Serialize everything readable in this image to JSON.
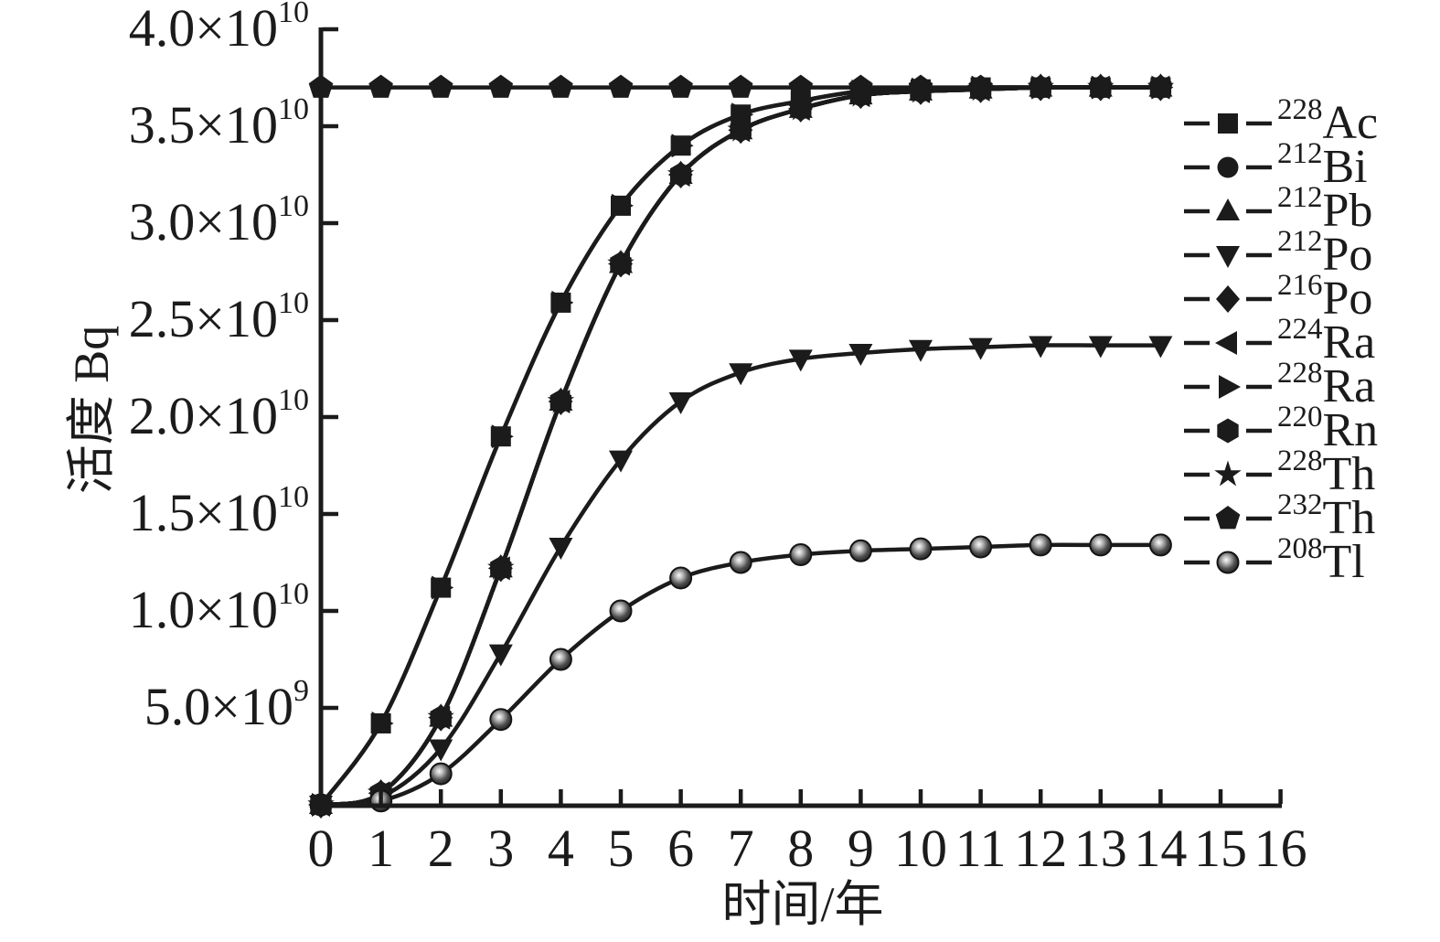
{
  "colors": {
    "foreground": "#1b1b1b",
    "background": "#ffffff"
  },
  "chart_data": {
    "type": "line",
    "title": "",
    "xlabel": "时间/年",
    "ylabel": "活度 Bq",
    "xlim": [
      0,
      16
    ],
    "ylim": [
      0,
      40000000000.0
    ],
    "grid": false,
    "legend_position": "right",
    "x_ticks": [
      0,
      1,
      2,
      3,
      4,
      5,
      6,
      7,
      8,
      9,
      10,
      11,
      12,
      13,
      14,
      15,
      16
    ],
    "y_ticks": [
      {
        "value": 5000000000.0,
        "mantissa": "5.0×10",
        "exponent": "9"
      },
      {
        "value": 10000000000.0,
        "mantissa": "1.0×10",
        "exponent": "10"
      },
      {
        "value": 15000000000.0,
        "mantissa": "1.5×10",
        "exponent": "10"
      },
      {
        "value": 20000000000.0,
        "mantissa": "2.0×10",
        "exponent": "10"
      },
      {
        "value": 25000000000.0,
        "mantissa": "2.5×10",
        "exponent": "10"
      },
      {
        "value": 30000000000.0,
        "mantissa": "3.0×10",
        "exponent": "10"
      },
      {
        "value": 35000000000.0,
        "mantissa": "3.5×10",
        "exponent": "10"
      },
      {
        "value": 40000000000.0,
        "mantissa": "4.0×10",
        "exponent": "10"
      }
    ],
    "x": [
      0,
      1,
      2,
      3,
      4,
      5,
      6,
      7,
      8,
      9,
      10,
      11,
      12,
      13,
      14
    ],
    "series": [
      {
        "name": "228Ac",
        "mass": "228",
        "symbol": "Ac",
        "marker": "square",
        "values": [
          0,
          4200000000.0,
          11200000000.0,
          19000000000.0,
          25900000000.0,
          30900000000.0,
          34000000000.0,
          35600000000.0,
          36300000000.0,
          36800000000.0,
          36900000000.0,
          37000000000.0,
          37000000000.0,
          37000000000.0,
          37000000000.0
        ]
      },
      {
        "name": "212Bi",
        "mass": "212",
        "symbol": "Bi",
        "marker": "circle",
        "values": [
          0,
          600000000.0,
          4500000000.0,
          12200000000.0,
          20800000000.0,
          27900000000.0,
          32500000000.0,
          34800000000.0,
          35900000000.0,
          36600000000.0,
          36800000000.0,
          36900000000.0,
          37000000000.0,
          37000000000.0,
          37000000000.0
        ]
      },
      {
        "name": "212Pb",
        "mass": "212",
        "symbol": "Pb",
        "marker": "triangle-up",
        "values": [
          0,
          600000000.0,
          4500000000.0,
          12200000000.0,
          20800000000.0,
          27900000000.0,
          32500000000.0,
          34800000000.0,
          35900000000.0,
          36600000000.0,
          36800000000.0,
          36900000000.0,
          37000000000.0,
          37000000000.0,
          37000000000.0
        ]
      },
      {
        "name": "212Po",
        "mass": "212",
        "symbol": "Po",
        "marker": "triangle-down",
        "values": [
          0,
          400000000.0,
          2900000000.0,
          7800000000.0,
          13300000000.0,
          17800000000.0,
          20800000000.0,
          22300000000.0,
          23000000000.0,
          23300000000.0,
          23500000000.0,
          23600000000.0,
          23700000000.0,
          23700000000.0,
          23700000000.0
        ]
      },
      {
        "name": "216Po",
        "mass": "216",
        "symbol": "Po",
        "marker": "diamond",
        "values": [
          0,
          600000000.0,
          4500000000.0,
          12200000000.0,
          20800000000.0,
          27900000000.0,
          32500000000.0,
          34800000000.0,
          35900000000.0,
          36600000000.0,
          36800000000.0,
          36900000000.0,
          37000000000.0,
          37000000000.0,
          37000000000.0
        ]
      },
      {
        "name": "224Ra",
        "mass": "224",
        "symbol": "Ra",
        "marker": "triangle-left",
        "values": [
          0,
          600000000.0,
          4500000000.0,
          12200000000.0,
          20800000000.0,
          27900000000.0,
          32500000000.0,
          34800000000.0,
          35900000000.0,
          36600000000.0,
          36800000000.0,
          36900000000.0,
          37000000000.0,
          37000000000.0,
          37000000000.0
        ]
      },
      {
        "name": "228Ra",
        "mass": "228",
        "symbol": "Ra",
        "marker": "triangle-right",
        "values": [
          0,
          4200000000.0,
          11200000000.0,
          19000000000.0,
          25900000000.0,
          30900000000.0,
          34000000000.0,
          35600000000.0,
          36300000000.0,
          36800000000.0,
          36900000000.0,
          37000000000.0,
          37000000000.0,
          37000000000.0,
          37000000000.0
        ]
      },
      {
        "name": "220Rn",
        "mass": "220",
        "symbol": "Rn",
        "marker": "hexagon",
        "values": [
          0,
          600000000.0,
          4500000000.0,
          12200000000.0,
          20800000000.0,
          27900000000.0,
          32500000000.0,
          34800000000.0,
          35900000000.0,
          36600000000.0,
          36800000000.0,
          36900000000.0,
          37000000000.0,
          37000000000.0,
          37000000000.0
        ]
      },
      {
        "name": "228Th",
        "mass": "228",
        "symbol": "Th",
        "marker": "star",
        "values": [
          0,
          600000000.0,
          4500000000.0,
          12200000000.0,
          20800000000.0,
          27900000000.0,
          32500000000.0,
          34800000000.0,
          35900000000.0,
          36600000000.0,
          36800000000.0,
          36900000000.0,
          37000000000.0,
          37000000000.0,
          37000000000.0
        ]
      },
      {
        "name": "232Th",
        "mass": "232",
        "symbol": "Th",
        "marker": "pentagon",
        "values": [
          37000000000.0,
          37000000000.0,
          37000000000.0,
          37000000000.0,
          37000000000.0,
          37000000000.0,
          37000000000.0,
          37000000000.0,
          37000000000.0,
          37000000000.0,
          37000000000.0,
          37000000000.0,
          37000000000.0,
          37000000000.0,
          37000000000.0
        ]
      },
      {
        "name": "208Tl",
        "mass": "208",
        "symbol": "Tl",
        "marker": "sphere",
        "values": [
          0,
          200000000.0,
          1600000000.0,
          4400000000.0,
          7500000000.0,
          10000000000.0,
          11700000000.0,
          12500000000.0,
          12900000000.0,
          13100000000.0,
          13200000000.0,
          13300000000.0,
          13400000000.0,
          13400000000.0,
          13400000000.0
        ]
      }
    ],
    "draw_order": [
      "232Th",
      "212Bi",
      "212Pb",
      "216Po",
      "224Ra",
      "220Rn",
      "228Th",
      "212Po",
      "208Tl",
      "228Ra",
      "228Ac"
    ]
  }
}
